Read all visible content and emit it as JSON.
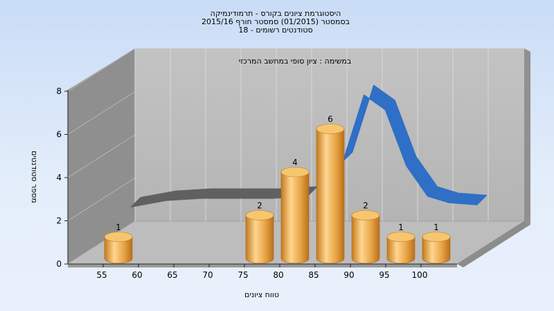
{
  "chart_data": {
    "type": "bar",
    "title_lines": [
      "היסטוגרמת ציונים בקורס - תרמודינמיקה",
      "בסמסטר  (01/2015)  סמסטר חורף 2015/16",
      "סטודנטים רשומים - 18"
    ],
    "subtitle": "במשימה : ציון סופי במחשב המרכזי",
    "xlabel": "טווח ציונים",
    "ylabel": "מספר סטודנטים",
    "x_ticks": [
      "55",
      "60",
      "65",
      "70",
      "75",
      "80",
      "85",
      "90",
      "95",
      "100"
    ],
    "y_ticks": [
      "0",
      "2",
      "4",
      "6",
      "8"
    ],
    "ylim": [
      0,
      8
    ],
    "series": [
      {
        "categories": [
          "55",
          "75",
          "80",
          "85",
          "90",
          "95",
          "100"
        ],
        "values": [
          1,
          2,
          4,
          6,
          2,
          1,
          1
        ],
        "color": "#e8a84a"
      }
    ],
    "curve": {
      "x": [
        55,
        60,
        65,
        70,
        75,
        80,
        85,
        88,
        91,
        94,
        97,
        100,
        104
      ],
      "y": [
        1.1,
        1.4,
        1.5,
        1.5,
        1.5,
        1.6,
        3.2,
        6.3,
        5.6,
        3.0,
        1.6,
        1.3,
        1.2
      ],
      "flat_color": "#606060",
      "color": "#2f6fc6"
    },
    "grid": true
  }
}
